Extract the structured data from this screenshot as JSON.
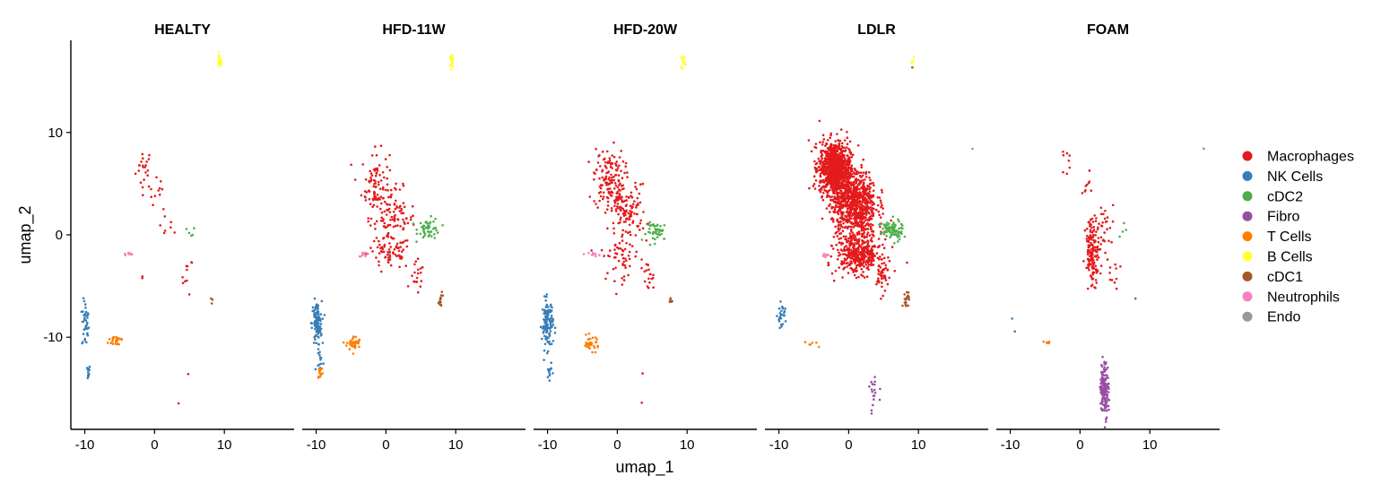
{
  "chart_data": {
    "type": "scatter",
    "facets": [
      "HEALTY",
      "HFD-11W",
      "HFD-20W",
      "LDLR",
      "FOAM"
    ],
    "xlabel": "umap_1",
    "ylabel": "umap_2",
    "xlim": [
      -12,
      20
    ],
    "ylim": [
      -19,
      19
    ],
    "x_ticks": [
      -10,
      0,
      10
    ],
    "y_ticks": [
      -10,
      0,
      10
    ],
    "x_tick_labels": [
      "-10",
      "0",
      "10"
    ],
    "y_tick_labels": [
      "-10",
      "0",
      "10"
    ],
    "legend_position": "right",
    "series": [
      {
        "name": "Macrophages",
        "color": "#E41A1C"
      },
      {
        "name": "NK Cells",
        "color": "#377EB8"
      },
      {
        "name": "cDC2",
        "color": "#4DAF4A"
      },
      {
        "name": "Fibro",
        "color": "#984EA3"
      },
      {
        "name": "T Cells",
        "color": "#FF7F00"
      },
      {
        "name": "B Cells",
        "color": "#FFFF33"
      },
      {
        "name": "cDC1",
        "color": "#A65628"
      },
      {
        "name": "Neutrophils",
        "color": "#F781BF"
      },
      {
        "name": "Endo",
        "color": "#999999"
      }
    ],
    "clusters": [
      {
        "panel": 0,
        "series": "Macrophages",
        "cx": -1.5,
        "cy": 6.5,
        "sx": 0.6,
        "sy": 1.0,
        "n": 22
      },
      {
        "panel": 0,
        "series": "Macrophages",
        "cx": 0.5,
        "cy": 4.0,
        "sx": 0.6,
        "sy": 0.8,
        "n": 10
      },
      {
        "panel": 0,
        "series": "Macrophages",
        "cx": 2.0,
        "cy": 1.0,
        "sx": 0.6,
        "sy": 1.0,
        "n": 8
      },
      {
        "panel": 0,
        "series": "Macrophages",
        "cx": 4.7,
        "cy": -4.0,
        "sx": 0.4,
        "sy": 0.9,
        "n": 10
      },
      {
        "panel": 0,
        "series": "Macrophages",
        "cx": -1.7,
        "cy": -4.1,
        "sx": 0.1,
        "sy": 0.1,
        "n": 2
      },
      {
        "panel": 0,
        "series": "cDC2",
        "cx": 5.2,
        "cy": 0.2,
        "sx": 0.3,
        "sy": 0.3,
        "n": 5
      },
      {
        "panel": 0,
        "series": "cDC1",
        "cx": 8.2,
        "cy": -6.4,
        "sx": 0.15,
        "sy": 0.2,
        "n": 3
      },
      {
        "panel": 0,
        "series": "Neutrophils",
        "cx": -3.8,
        "cy": -1.9,
        "sx": 0.4,
        "sy": 0.08,
        "n": 8
      },
      {
        "panel": 0,
        "series": "B Cells",
        "cx": 9.3,
        "cy": 17.0,
        "sx": 0.15,
        "sy": 0.35,
        "n": 18
      },
      {
        "panel": 0,
        "series": "NK Cells",
        "cx": -9.9,
        "cy": -8.8,
        "sx": 0.25,
        "sy": 1.2,
        "n": 40
      },
      {
        "panel": 0,
        "series": "NK Cells",
        "cx": -9.6,
        "cy": -13.4,
        "sx": 0.2,
        "sy": 0.35,
        "n": 12
      },
      {
        "panel": 0,
        "series": "T Cells",
        "cx": -5.4,
        "cy": -10.3,
        "sx": 0.6,
        "sy": 0.3,
        "n": 25
      },
      {
        "panel": 0,
        "series": "Macrophages",
        "cx": 3.5,
        "cy": -16.4,
        "sx": 0.05,
        "sy": 0.05,
        "n": 1
      },
      {
        "panel": 0,
        "series": "Macrophages",
        "cx": 4.8,
        "cy": -13.6,
        "sx": 0.05,
        "sy": 0.05,
        "n": 1
      },
      {
        "panel": 1,
        "series": "Macrophages",
        "cx": -1.5,
        "cy": 5.0,
        "sx": 1.0,
        "sy": 1.6,
        "n": 90
      },
      {
        "panel": 1,
        "series": "Macrophages",
        "cx": 1.0,
        "cy": 1.5,
        "sx": 1.6,
        "sy": 1.5,
        "n": 100
      },
      {
        "panel": 1,
        "series": "Macrophages",
        "cx": 0.5,
        "cy": -1.8,
        "sx": 1.6,
        "sy": 0.8,
        "n": 60
      },
      {
        "panel": 1,
        "series": "Macrophages",
        "cx": 4.5,
        "cy": -4.3,
        "sx": 0.5,
        "sy": 0.8,
        "n": 18
      },
      {
        "panel": 1,
        "series": "cDC2",
        "cx": 6.2,
        "cy": 0.6,
        "sx": 0.8,
        "sy": 0.5,
        "n": 50
      },
      {
        "panel": 1,
        "series": "cDC1",
        "cx": 7.9,
        "cy": -6.4,
        "sx": 0.2,
        "sy": 0.35,
        "n": 12
      },
      {
        "panel": 1,
        "series": "Neutrophils",
        "cx": -3.1,
        "cy": -1.9,
        "sx": 0.4,
        "sy": 0.1,
        "n": 10
      },
      {
        "panel": 1,
        "series": "B Cells",
        "cx": 9.4,
        "cy": 17.0,
        "sx": 0.15,
        "sy": 0.35,
        "n": 16
      },
      {
        "panel": 1,
        "series": "NK Cells",
        "cx": -9.9,
        "cy": -8.7,
        "sx": 0.35,
        "sy": 1.1,
        "n": 110
      },
      {
        "panel": 1,
        "series": "NK Cells",
        "cx": -9.4,
        "cy": -12.2,
        "sx": 0.2,
        "sy": 0.6,
        "n": 12
      },
      {
        "panel": 1,
        "series": "T Cells",
        "cx": -9.4,
        "cy": -13.4,
        "sx": 0.2,
        "sy": 0.35,
        "n": 14
      },
      {
        "panel": 1,
        "series": "T Cells",
        "cx": -4.6,
        "cy": -10.6,
        "sx": 0.5,
        "sy": 0.35,
        "n": 40
      },
      {
        "panel": 2,
        "series": "Macrophages",
        "cx": -1.2,
        "cy": 5.5,
        "sx": 1.1,
        "sy": 1.5,
        "n": 140
      },
      {
        "panel": 2,
        "series": "Macrophages",
        "cx": 1.5,
        "cy": 2.3,
        "sx": 1.3,
        "sy": 1.3,
        "n": 110
      },
      {
        "panel": 2,
        "series": "Macrophages",
        "cx": 0.5,
        "cy": -2.0,
        "sx": 1.4,
        "sy": 1.2,
        "n": 60
      },
      {
        "panel": 2,
        "series": "Macrophages",
        "cx": 4.3,
        "cy": -4.2,
        "sx": 0.5,
        "sy": 0.8,
        "n": 18
      },
      {
        "panel": 2,
        "series": "cDC2",
        "cx": 5.8,
        "cy": 0.3,
        "sx": 0.8,
        "sy": 0.45,
        "n": 45
      },
      {
        "panel": 2,
        "series": "cDC1",
        "cx": 7.8,
        "cy": -6.4,
        "sx": 0.2,
        "sy": 0.2,
        "n": 6
      },
      {
        "panel": 2,
        "series": "Neutrophils",
        "cx": -3.3,
        "cy": -1.9,
        "sx": 0.4,
        "sy": 0.1,
        "n": 10
      },
      {
        "panel": 2,
        "series": "B Cells",
        "cx": 9.4,
        "cy": 17.0,
        "sx": 0.15,
        "sy": 0.35,
        "n": 16
      },
      {
        "panel": 2,
        "series": "NK Cells",
        "cx": -10.0,
        "cy": -8.7,
        "sx": 0.4,
        "sy": 1.2,
        "n": 120
      },
      {
        "panel": 2,
        "series": "NK Cells",
        "cx": -9.7,
        "cy": -13.4,
        "sx": 0.2,
        "sy": 0.35,
        "n": 14
      },
      {
        "panel": 2,
        "series": "T Cells",
        "cx": -3.8,
        "cy": -10.6,
        "sx": 0.6,
        "sy": 0.35,
        "n": 35
      },
      {
        "panel": 2,
        "series": "Macrophages",
        "cx": 3.6,
        "cy": -13.6,
        "sx": 0.05,
        "sy": 0.05,
        "n": 1
      },
      {
        "panel": 2,
        "series": "Macrophages",
        "cx": 3.5,
        "cy": -16.4,
        "sx": 0.05,
        "sy": 0.05,
        "n": 1
      },
      {
        "panel": 3,
        "series": "Macrophages",
        "cx": -2.0,
        "cy": 6.5,
        "sx": 1.1,
        "sy": 1.3,
        "n": 900
      },
      {
        "panel": 3,
        "series": "Macrophages",
        "cx": 0.8,
        "cy": 3.0,
        "sx": 1.6,
        "sy": 1.6,
        "n": 800
      },
      {
        "panel": 3,
        "series": "Macrophages",
        "cx": 1.5,
        "cy": -1.8,
        "sx": 1.6,
        "sy": 1.0,
        "n": 400
      },
      {
        "panel": 3,
        "series": "Macrophages",
        "cx": 4.8,
        "cy": -4.0,
        "sx": 0.4,
        "sy": 0.8,
        "n": 40
      },
      {
        "panel": 3,
        "series": "cDC2",
        "cx": 6.2,
        "cy": 0.4,
        "sx": 0.8,
        "sy": 0.5,
        "n": 80
      },
      {
        "panel": 3,
        "series": "cDC1",
        "cx": 8.2,
        "cy": -6.3,
        "sx": 0.25,
        "sy": 0.35,
        "n": 18
      },
      {
        "panel": 3,
        "series": "Neutrophils",
        "cx": -3.3,
        "cy": -2.0,
        "sx": 0.3,
        "sy": 0.1,
        "n": 8
      },
      {
        "panel": 3,
        "series": "B Cells",
        "cx": 9.2,
        "cy": 17.0,
        "sx": 0.12,
        "sy": 0.3,
        "n": 6
      },
      {
        "panel": 3,
        "series": "NK Cells",
        "cx": -9.6,
        "cy": -8.0,
        "sx": 0.3,
        "sy": 0.6,
        "n": 25
      },
      {
        "panel": 3,
        "series": "T Cells",
        "cx": -5.0,
        "cy": -10.6,
        "sx": 0.6,
        "sy": 0.3,
        "n": 6
      },
      {
        "panel": 3,
        "series": "Fibro",
        "cx": 3.6,
        "cy": -15.5,
        "sx": 0.35,
        "sy": 0.9,
        "n": 18
      },
      {
        "panel": 3,
        "series": "Endo",
        "cx": 17.8,
        "cy": 8.3,
        "sx": 0.05,
        "sy": 0.05,
        "n": 1
      },
      {
        "panel": 3,
        "series": "cDC1",
        "cx": 9.0,
        "cy": 16.3,
        "sx": 0.05,
        "sy": 0.05,
        "n": 1
      },
      {
        "panel": 4,
        "series": "Macrophages",
        "cx": -1.8,
        "cy": 7.0,
        "sx": 0.3,
        "sy": 0.8,
        "n": 8
      },
      {
        "panel": 4,
        "series": "Macrophages",
        "cx": 1.0,
        "cy": 4.5,
        "sx": 0.5,
        "sy": 0.8,
        "n": 10
      },
      {
        "panel": 4,
        "series": "Macrophages",
        "cx": 1.8,
        "cy": -1.5,
        "sx": 0.5,
        "sy": 1.6,
        "n": 140
      },
      {
        "panel": 4,
        "series": "Macrophages",
        "cx": 3.5,
        "cy": 0.5,
        "sx": 0.7,
        "sy": 1.3,
        "n": 30
      },
      {
        "panel": 4,
        "series": "Macrophages",
        "cx": 4.8,
        "cy": -4.2,
        "sx": 0.4,
        "sy": 0.8,
        "n": 10
      },
      {
        "panel": 4,
        "series": "cDC2",
        "cx": 6.5,
        "cy": 0.6,
        "sx": 1.0,
        "sy": 0.4,
        "n": 4
      },
      {
        "panel": 4,
        "series": "cDC1",
        "cx": 8.0,
        "cy": -6.4,
        "sx": 0.1,
        "sy": 0.1,
        "n": 1
      },
      {
        "panel": 4,
        "series": "Fibro",
        "cx": 3.5,
        "cy": -15.0,
        "sx": 0.3,
        "sy": 1.3,
        "n": 150
      },
      {
        "panel": 4,
        "series": "NK Cells",
        "cx": -9.7,
        "cy": -7.9,
        "sx": 0.3,
        "sy": 0.8,
        "n": 2
      },
      {
        "panel": 4,
        "series": "T Cells",
        "cx": -4.5,
        "cy": -10.5,
        "sx": 0.3,
        "sy": 0.2,
        "n": 6
      },
      {
        "panel": 4,
        "series": "Endo",
        "cx": 17.7,
        "cy": 8.4,
        "sx": 0.05,
        "sy": 0.05,
        "n": 2
      }
    ]
  }
}
